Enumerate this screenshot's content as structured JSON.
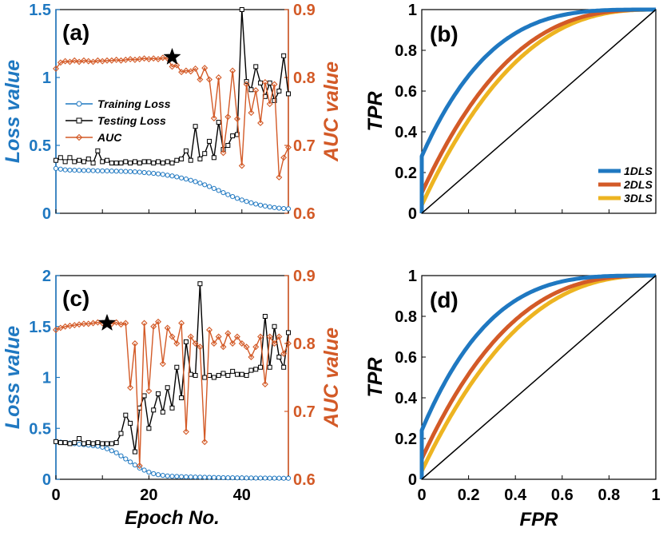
{
  "colors": {
    "blue": "#1f78c1",
    "orange": "#d35a27",
    "yellow": "#edb421",
    "black": "#000000"
  },
  "chart_data": [
    {
      "panel": "(a)",
      "type": "line",
      "xlabel": "",
      "ylabel_left": "Loss value",
      "ylabel_right": "AUC value",
      "xlim": [
        0,
        50
      ],
      "ylim_left": [
        0,
        1.5
      ],
      "ylim_right": [
        0.6,
        0.9
      ],
      "yticks_left": [
        "0",
        "0.5",
        "1",
        "1.5"
      ],
      "yticks_right": [
        "0.6",
        "0.7",
        "0.8",
        "0.9"
      ],
      "xticks": [],
      "legend": [
        "Training Loss",
        "Testing Loss",
        "AUC"
      ],
      "series": [
        {
          "name": "Training Loss",
          "axis": "left",
          "values": [
            0.33,
            0.325,
            0.32,
            0.318,
            0.317,
            0.316,
            0.315,
            0.315,
            0.314,
            0.313,
            0.312,
            0.312,
            0.311,
            0.31,
            0.309,
            0.308,
            0.307,
            0.305,
            0.303,
            0.3,
            0.297,
            0.294,
            0.29,
            0.286,
            0.28,
            0.275,
            0.268,
            0.26,
            0.252,
            0.243,
            0.233,
            0.222,
            0.21,
            0.197,
            0.183,
            0.168,
            0.152,
            0.137,
            0.123,
            0.11,
            0.098,
            0.087,
            0.077,
            0.068,
            0.06,
            0.053,
            0.047,
            0.042,
            0.038,
            0.035,
            0.033
          ]
        },
        {
          "name": "Testing Loss",
          "axis": "left",
          "values": [
            0.39,
            0.41,
            0.38,
            0.41,
            0.38,
            0.39,
            0.38,
            0.4,
            0.37,
            0.46,
            0.38,
            0.39,
            0.37,
            0.37,
            0.37,
            0.38,
            0.37,
            0.38,
            0.37,
            0.38,
            0.38,
            0.37,
            0.38,
            0.37,
            0.38,
            0.37,
            0.39,
            0.4,
            0.46,
            0.39,
            0.64,
            0.4,
            0.44,
            0.53,
            0.41,
            0.67,
            0.47,
            0.5,
            0.57,
            0.58,
            1.5,
            0.97,
            0.91,
            1.08,
            0.96,
            0.86,
            0.96,
            0.83,
            0.9,
            1.16,
            0.88
          ]
        },
        {
          "name": "AUC",
          "axis": "right",
          "values": [
            0.813,
            0.822,
            0.824,
            0.823,
            0.825,
            0.823,
            0.825,
            0.824,
            0.823,
            0.825,
            0.824,
            0.825,
            0.825,
            0.826,
            0.825,
            0.826,
            0.827,
            0.826,
            0.827,
            0.828,
            0.827,
            0.828,
            0.827,
            0.829,
            0.828,
            0.816,
            0.818,
            0.808,
            0.81,
            0.809,
            0.813,
            0.797,
            0.814,
            0.797,
            0.74,
            0.8,
            0.689,
            0.742,
            0.81,
            0.739,
            0.67,
            0.79,
            0.748,
            0.781,
            0.733,
            0.793,
            0.761,
            0.79,
            0.653,
            0.682,
            0.697
          ]
        }
      ],
      "annotations": [
        {
          "type": "star",
          "x": 25,
          "y": 0.83,
          "axis": "right"
        }
      ]
    },
    {
      "panel": "(b)",
      "type": "line",
      "xlabel": "",
      "ylabel": "TPR",
      "xlim": [
        0,
        1
      ],
      "ylim": [
        0,
        1
      ],
      "yticks": [
        "0",
        "0.2",
        "0.4",
        "0.6",
        "0.8",
        "1"
      ],
      "xticks": [],
      "legend": [
        "1DLS",
        "2DLS",
        "3DLS"
      ],
      "legend_position": "lower-right",
      "series": [
        {
          "name": "1DLS",
          "shape": 0.28,
          "offset": 0.28
        },
        {
          "name": "2DLS",
          "shape": 0.36,
          "offset": 0.1
        },
        {
          "name": "3DLS",
          "shape": 0.39,
          "offset": 0.04
        }
      ],
      "diagonal": true
    },
    {
      "panel": "(c)",
      "type": "line",
      "xlabel": "Epoch No.",
      "ylabel_left": "Loss value",
      "ylabel_right": "AUC value",
      "xlim": [
        0,
        50
      ],
      "ylim_left": [
        0,
        2
      ],
      "ylim_right": [
        0.6,
        0.9
      ],
      "yticks_left": [
        "0",
        "0.5",
        "1",
        "1.5",
        "2"
      ],
      "yticks_right": [
        "0.6",
        "0.7",
        "0.8",
        "0.9"
      ],
      "xticks": [
        "0",
        "20",
        "40"
      ],
      "series": [
        {
          "name": "Training Loss",
          "axis": "left",
          "values": [
            0.37,
            0.365,
            0.36,
            0.355,
            0.35,
            0.345,
            0.34,
            0.335,
            0.33,
            0.325,
            0.315,
            0.3,
            0.28,
            0.26,
            0.23,
            0.2,
            0.17,
            0.14,
            0.11,
            0.09,
            0.07,
            0.055,
            0.045,
            0.038,
            0.033,
            0.03,
            0.028,
            0.026,
            0.024,
            0.023,
            0.022,
            0.021,
            0.02,
            0.019,
            0.018,
            0.017,
            0.016,
            0.015,
            0.015,
            0.014,
            0.014,
            0.013,
            0.013,
            0.012,
            0.012,
            0.012,
            0.011,
            0.011,
            0.011,
            0.01,
            0.01
          ]
        },
        {
          "name": "Testing Loss",
          "axis": "left",
          "values": [
            0.37,
            0.36,
            0.36,
            0.35,
            0.36,
            0.4,
            0.35,
            0.36,
            0.35,
            0.36,
            0.35,
            0.35,
            0.35,
            0.36,
            0.45,
            0.63,
            0.55,
            0.27,
            0.7,
            0.82,
            0.5,
            0.68,
            0.84,
            0.66,
            0.9,
            0.7,
            1.1,
            0.8,
            1.35,
            1.03,
            1.02,
            1.92,
            1,
            1.02,
            1,
            1.02,
            1.04,
            1.02,
            1.06,
            1.03,
            1.03,
            1.02,
            1.07,
            1.08,
            1.1,
            1.6,
            1.1,
            1.5,
            1.2,
            1.1,
            1.44
          ]
        },
        {
          "name": "AUC",
          "axis": "right",
          "values": [
            0.82,
            0.823,
            0.825,
            0.826,
            0.827,
            0.828,
            0.829,
            0.829,
            0.83,
            0.831,
            0.83,
            0.83,
            0.829,
            0.831,
            0.828,
            0.83,
            0.735,
            0.8,
            0.62,
            0.83,
            0.73,
            0.825,
            0.832,
            0.77,
            0.823,
            0.81,
            0.8,
            0.83,
            0.67,
            0.81,
            0.8,
            0.795,
            0.655,
            0.82,
            0.8,
            0.81,
            0.795,
            0.815,
            0.8,
            0.81,
            0.8,
            0.795,
            0.78,
            0.795,
            0.81,
            0.74,
            0.81,
            0.8,
            0.81,
            0.785,
            0.8
          ]
        }
      ],
      "annotations": [
        {
          "type": "star",
          "x": 11,
          "y": 0.83,
          "axis": "right"
        }
      ]
    },
    {
      "panel": "(d)",
      "type": "line",
      "xlabel": "FPR",
      "ylabel": "TPR",
      "xlim": [
        0,
        1
      ],
      "ylim": [
        0,
        1
      ],
      "yticks": [
        "0",
        "0.2",
        "0.4",
        "0.6",
        "0.8",
        "1"
      ],
      "xticks": [
        "0",
        "0.2",
        "0.4",
        "0.6",
        "0.8",
        "1"
      ],
      "series": [
        {
          "name": "1DLS",
          "shape": 0.28,
          "offset": 0.24
        },
        {
          "name": "2DLS",
          "shape": 0.36,
          "offset": 0.1
        },
        {
          "name": "3DLS",
          "shape": 0.4,
          "offset": 0.04
        }
      ],
      "diagonal": true
    }
  ]
}
